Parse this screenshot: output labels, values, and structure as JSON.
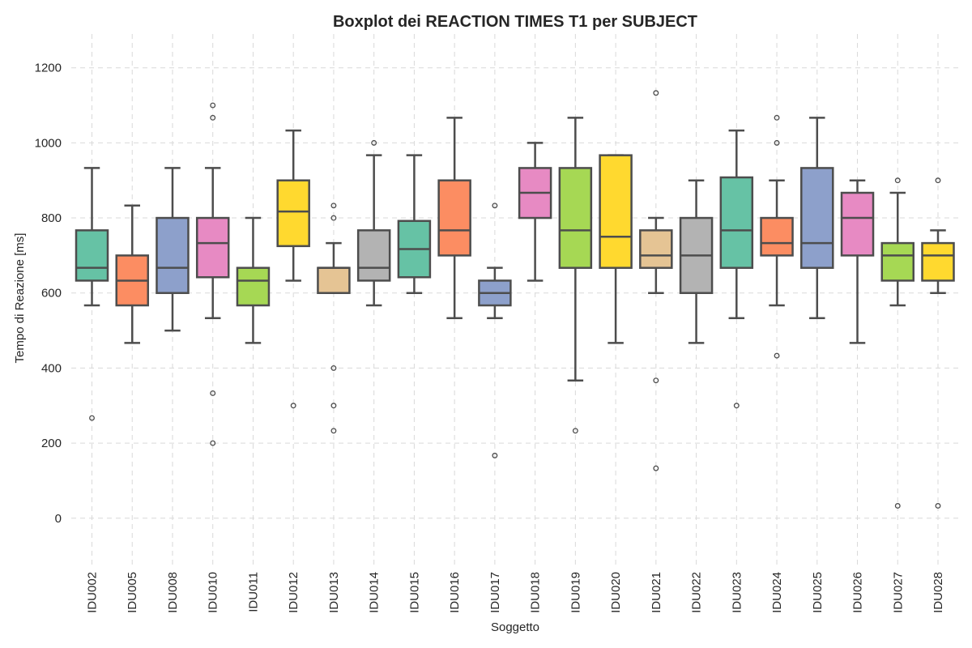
{
  "chart_data": {
    "type": "box",
    "title": "Boxplot dei REACTION TIMES T1 per SUBJECT",
    "xlabel": "Soggetto",
    "ylabel": "Tempo di Reazione [ms]",
    "ylim": [
      -130,
      1290
    ],
    "yticks": [
      0,
      200,
      400,
      600,
      800,
      1000,
      1200
    ],
    "grid": true,
    "palette": [
      "#66c2a5",
      "#fc8d62",
      "#8da0cb",
      "#e78ac3",
      "#a6d854",
      "#ffd92f",
      "#e5c494",
      "#b3b3b3"
    ],
    "categories": [
      "IDU002",
      "IDU005",
      "IDU008",
      "IDU010",
      "IDU011",
      "IDU012",
      "IDU013",
      "IDU014",
      "IDU015",
      "IDU016",
      "IDU017",
      "IDU018",
      "IDU019",
      "IDU020",
      "IDU021",
      "IDU022",
      "IDU023",
      "IDU024",
      "IDU025",
      "IDU026",
      "IDU027",
      "IDU028"
    ],
    "boxes": [
      {
        "whislo": 567,
        "q1": 633,
        "med": 667,
        "q3": 767,
        "whishi": 933,
        "fliers": [
          267
        ]
      },
      {
        "whislo": 467,
        "q1": 567,
        "med": 633,
        "q3": 700,
        "whishi": 833,
        "fliers": []
      },
      {
        "whislo": 500,
        "q1": 600,
        "med": 667,
        "q3": 800,
        "whishi": 933,
        "fliers": []
      },
      {
        "whislo": 533,
        "q1": 642,
        "med": 733,
        "q3": 800,
        "whishi": 933,
        "fliers": [
          1100,
          1067,
          333,
          200
        ]
      },
      {
        "whislo": 467,
        "q1": 567,
        "med": 633,
        "q3": 667,
        "whishi": 800,
        "fliers": []
      },
      {
        "whislo": 633,
        "q1": 725,
        "med": 817,
        "q3": 900,
        "whishi": 1033,
        "fliers": [
          300
        ]
      },
      {
        "whislo": 600,
        "q1": 600,
        "med": 667,
        "q3": 667,
        "whishi": 733,
        "fliers": [
          833,
          800,
          400,
          300,
          233
        ]
      },
      {
        "whislo": 567,
        "q1": 633,
        "med": 667,
        "q3": 767,
        "whishi": 967,
        "fliers": [
          1000
        ]
      },
      {
        "whislo": 600,
        "q1": 642,
        "med": 717,
        "q3": 792,
        "whishi": 967,
        "fliers": []
      },
      {
        "whislo": 533,
        "q1": 700,
        "med": 767,
        "q3": 900,
        "whishi": 1067,
        "fliers": []
      },
      {
        "whislo": 533,
        "q1": 567,
        "med": 600,
        "q3": 633,
        "whishi": 667,
        "fliers": [
          833,
          167
        ]
      },
      {
        "whislo": 633,
        "q1": 800,
        "med": 867,
        "q3": 933,
        "whishi": 1000,
        "fliers": []
      },
      {
        "whislo": 367,
        "q1": 667,
        "med": 767,
        "q3": 933,
        "whishi": 1067,
        "fliers": [
          233
        ]
      },
      {
        "whislo": 467,
        "q1": 667,
        "med": 750,
        "q3": 967,
        "whishi": 967,
        "fliers": []
      },
      {
        "whislo": 600,
        "q1": 667,
        "med": 700,
        "q3": 767,
        "whishi": 800,
        "fliers": [
          1133,
          367,
          133
        ]
      },
      {
        "whislo": 467,
        "q1": 600,
        "med": 700,
        "q3": 800,
        "whishi": 900,
        "fliers": []
      },
      {
        "whislo": 533,
        "q1": 667,
        "med": 767,
        "q3": 908,
        "whishi": 1033,
        "fliers": [
          300
        ]
      },
      {
        "whislo": 567,
        "q1": 700,
        "med": 733,
        "q3": 800,
        "whishi": 900,
        "fliers": [
          1067,
          1000,
          433
        ]
      },
      {
        "whislo": 533,
        "q1": 667,
        "med": 733,
        "q3": 933,
        "whishi": 1067,
        "fliers": []
      },
      {
        "whislo": 467,
        "q1": 700,
        "med": 800,
        "q3": 867,
        "whishi": 900,
        "fliers": []
      },
      {
        "whislo": 567,
        "q1": 633,
        "med": 700,
        "q3": 733,
        "whishi": 867,
        "fliers": [
          900,
          33
        ]
      },
      {
        "whislo": 600,
        "q1": 633,
        "med": 700,
        "q3": 733,
        "whishi": 767,
        "fliers": [
          900,
          33
        ]
      }
    ]
  }
}
